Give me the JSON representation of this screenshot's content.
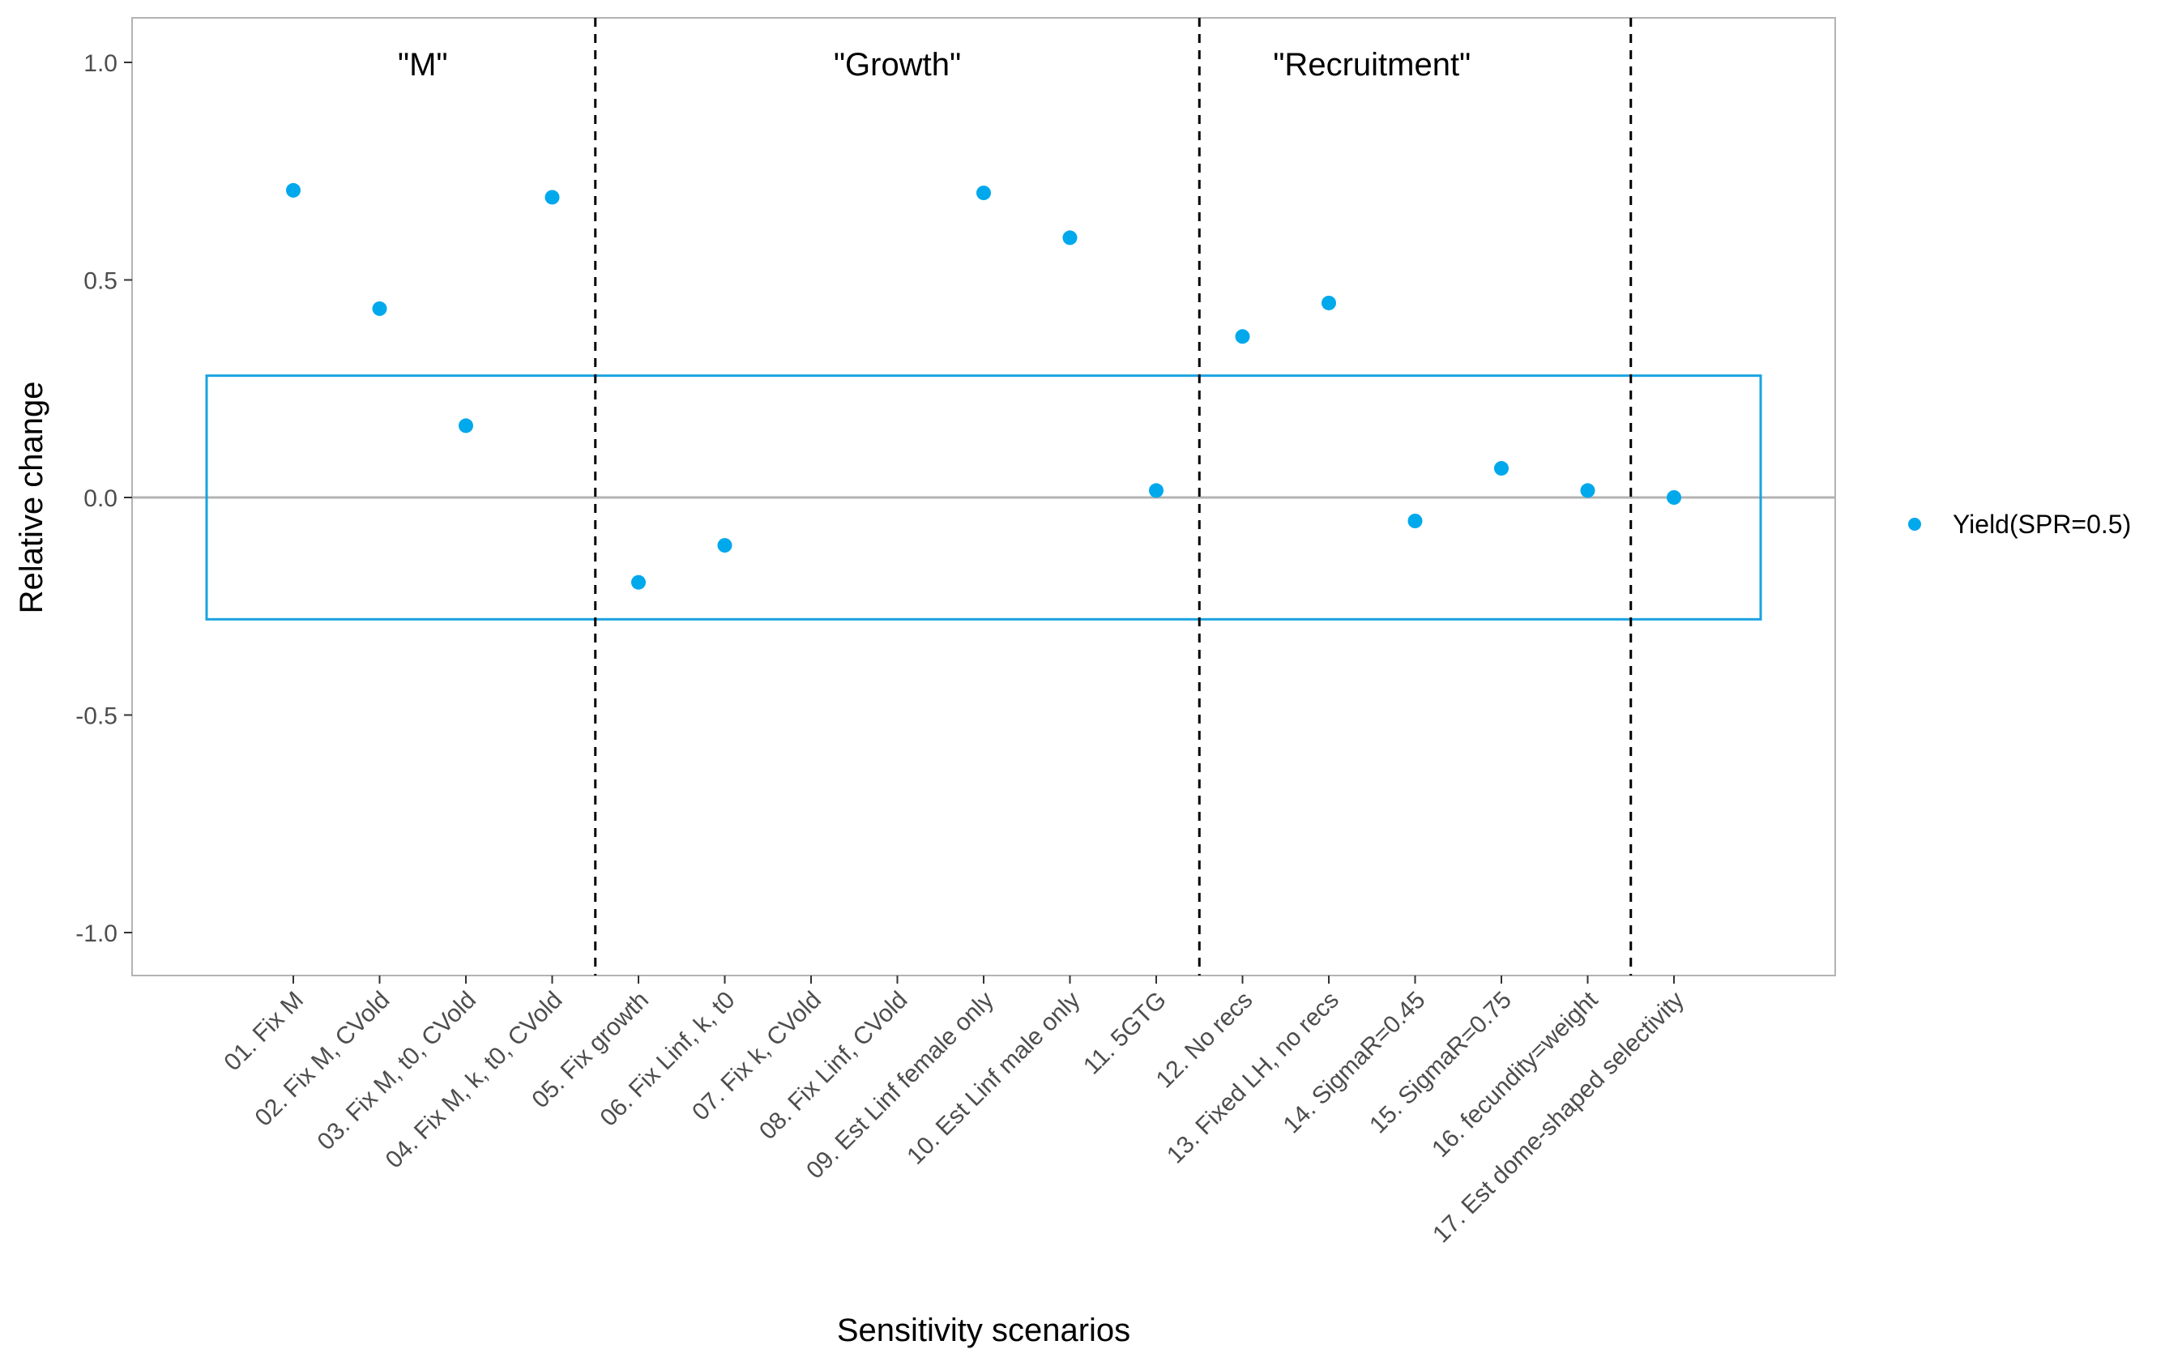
{
  "chart_data": {
    "type": "scatter",
    "title": "",
    "xlabel": "Sensitivity scenarios",
    "ylabel": "Relative change",
    "ylim": [
      -1.1,
      1.1
    ],
    "yticks": [
      -1.0,
      -0.5,
      0.0,
      0.5,
      1.0
    ],
    "ytick_labels": [
      "-1.0",
      "-0.5",
      "0.0",
      "0.5",
      "1.0"
    ],
    "grid": false,
    "legend_position": "right",
    "categories": [
      "01. Fix M",
      "02. Fix M, CVold",
      "03. Fix M, t0, CVold",
      "04. Fix M, k, t0, CVold",
      "05. Fix growth",
      "06. Fix Linf, k, t0",
      "07. Fix k, CVold",
      "08. Fix Linf, CVold",
      "09. Est Linf female only",
      "10. Est Linf male only",
      "11. 5GTG",
      "12. No recs",
      "13. Fixed LH, no recs",
      "14. SigmaR=0.45",
      "15. SigmaR=0.75",
      "16. fecundity=weight",
      "17. Est dome-shaped selectivity"
    ],
    "series": [
      {
        "name": "Yield(SPR=0.5)",
        "color": "#00a8ec",
        "values": [
          0.706,
          0.434,
          0.165,
          0.69,
          -0.195,
          -0.11,
          null,
          null,
          0.7,
          0.597,
          0.016,
          0.37,
          0.447,
          -0.054,
          0.067,
          0.016,
          0.0
        ]
      }
    ],
    "group_labels": [
      {
        "text": "\"M\"",
        "from_index": 0,
        "to_index": 3
      },
      {
        "text": "\"Growth\"",
        "from_index": 4,
        "to_index": 10
      },
      {
        "text": "\"Recruitment\"",
        "from_index": 11,
        "to_index": 14
      }
    ],
    "group_dividers_after_index": [
      3,
      10,
      15
    ],
    "reference_line_y": 0.0,
    "reference_box": {
      "from_index": 0,
      "to_index": 16,
      "y_min": -0.28,
      "y_max": 0.28,
      "color": "#1aa3e0"
    }
  }
}
